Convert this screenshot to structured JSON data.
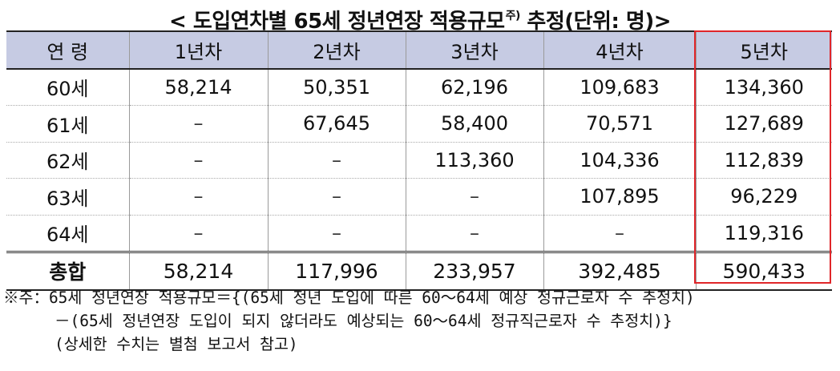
{
  "title": {
    "text": "< 도입연차별 65세 정년연장 적용규모",
    "superscript": "주)",
    "suffix": " 추정(단위: 명)>"
  },
  "table": {
    "headers": [
      "연  령",
      "1년차",
      "2년차",
      "3년차",
      "4년차",
      "5년차"
    ],
    "rows": [
      {
        "age": "60세",
        "values": [
          "58,214",
          "50,351",
          "62,196",
          "109,683",
          "134,360"
        ]
      },
      {
        "age": "61세",
        "values": [
          "–",
          "67,645",
          "58,400",
          "70,571",
          "127,689"
        ]
      },
      {
        "age": "62세",
        "values": [
          "–",
          "–",
          "113,360",
          "104,336",
          "112,839"
        ]
      },
      {
        "age": "63세",
        "values": [
          "–",
          "–",
          "–",
          "107,895",
          "96,229"
        ]
      },
      {
        "age": "64세",
        "values": [
          "–",
          "–",
          "–",
          "–",
          "119,316"
        ]
      }
    ],
    "total": {
      "label": "총합",
      "values": [
        "58,214",
        "117,996",
        "233,957",
        "392,485",
        "590,433"
      ]
    }
  },
  "highlight_color": "#e0262a",
  "header_bg": "#c6cbe3",
  "notes": [
    "※주：65세 정년연장 적용규모＝{(65세 정년 도입에 따른 60～64세 예상 정규근로자 수 추정치)",
    "－(65세 정년연장 도입이 되지 않더라도 예상되는 60～64세 정규직근로자 수 추정치)}",
    "(상세한 수치는 별첨 보고서 참고)"
  ]
}
